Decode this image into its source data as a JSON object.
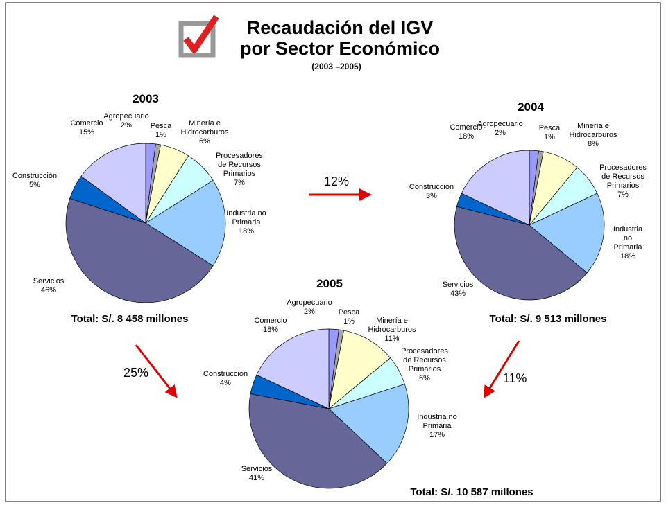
{
  "header": {
    "title": [
      "Recaudación del IGV",
      "por Sector Económico"
    ],
    "subtitle": "(2003 –2005)"
  },
  "annotations": [
    "12%",
    "25%",
    "11%"
  ],
  "chart_data": [
    {
      "type": "pie",
      "title": "2003",
      "annotation": "Total: S/. 8 458 millones",
      "categories": [
        "Agropecuario",
        "Pesca",
        "Minería e\nHidrocarburos",
        "Procesadores\nde Recursos\nPrimarios",
        "Industria no\nPrimaria",
        "Servicios",
        "Construcción",
        "Comercio"
      ],
      "values": [
        2,
        1,
        6,
        7,
        18,
        46,
        5,
        15
      ],
      "value_labels": [
        "2%",
        "1%",
        "6%",
        "7%",
        "18%",
        "46%",
        "5%",
        "15%"
      ],
      "colors": [
        "#9999ff",
        "#a6a6a6",
        "#ffffcc",
        "#ccffff",
        "#99ccff",
        "#666699",
        "#0066cc",
        "#ccccff"
      ]
    },
    {
      "type": "pie",
      "title": "2004",
      "annotation": "Total: S/. 9 513 millones",
      "categories": [
        "Agropecuario",
        "Pesca",
        "Minería e\nHidrocarburos",
        "Procesadores\nde Recursos\nPrimarios",
        "Industria no\nPrimaria",
        "Servicios",
        "Construcción",
        "Comercio"
      ],
      "values": [
        2,
        1,
        8,
        7,
        18,
        43,
        3,
        18
      ],
      "value_labels": [
        "2%",
        "1%",
        "8%",
        "7%",
        "18%",
        "43%",
        "3%",
        "18%"
      ],
      "colors": [
        "#9999ff",
        "#a6a6a6",
        "#ffffcc",
        "#ccffff",
        "#99ccff",
        "#666699",
        "#0066cc",
        "#ccccff"
      ]
    },
    {
      "type": "pie",
      "title": "2005",
      "annotation": "Total: S/. 10 587 millones",
      "categories": [
        "Agropecuario",
        "Pesca",
        "Minería e\nHidrocarburos",
        "Procesadores\nde Recursos\nPrimarios",
        "Industria no\nPrimaria",
        "Servicios",
        "Construcción",
        "Comercio"
      ],
      "values": [
        2,
        1,
        11,
        6,
        17,
        41,
        4,
        18
      ],
      "value_labels": [
        "2%",
        "1%",
        "11%",
        "6%",
        "17%",
        "41%",
        "4%",
        "18%"
      ],
      "colors": [
        "#9999ff",
        "#a6a6a6",
        "#ffffcc",
        "#ccffff",
        "#99ccff",
        "#666699",
        "#0066cc",
        "#ccccff"
      ]
    }
  ]
}
